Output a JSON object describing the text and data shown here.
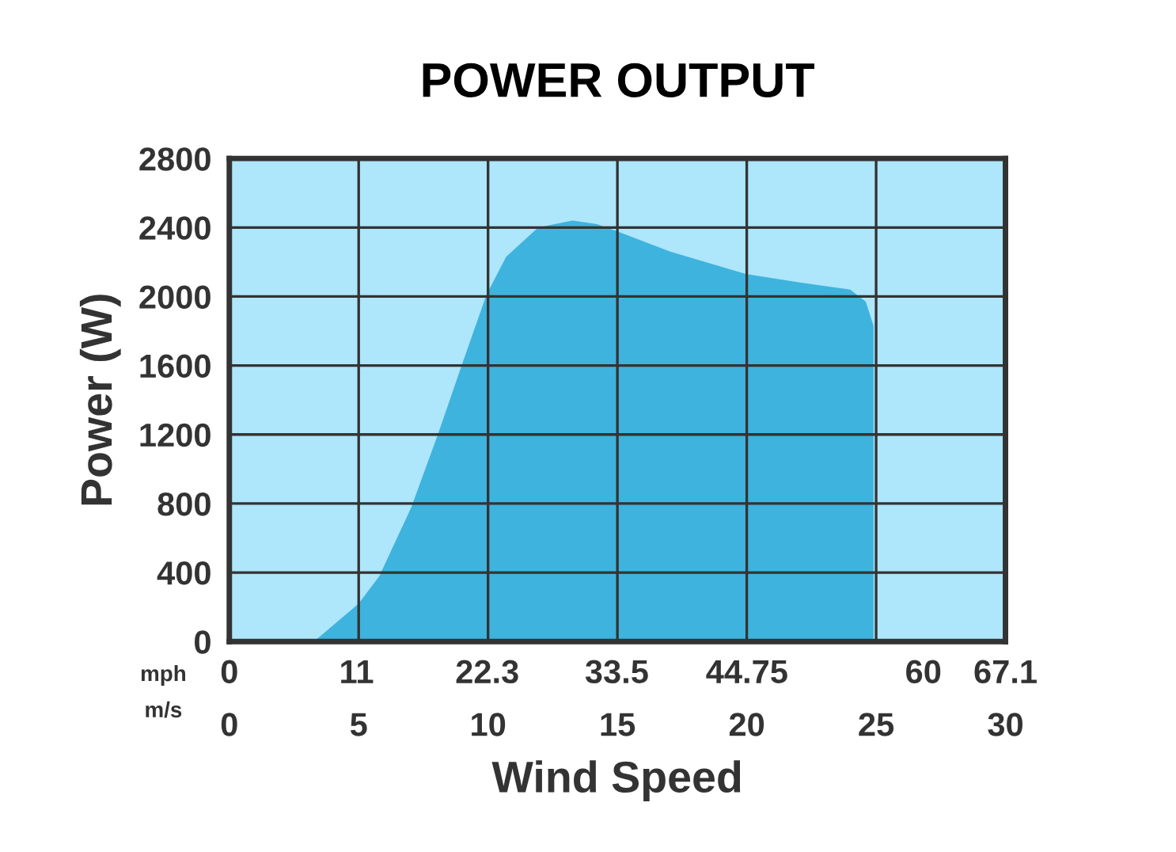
{
  "chart_data": {
    "type": "area",
    "title": "POWER OUTPUT",
    "xlabel": "Wind Speed",
    "ylabel": "Power (W)",
    "annotations": [
      "mph",
      "m/s"
    ],
    "series": [
      {
        "color": "#3eb3de",
        "x": [
          3.27,
          5,
          5.8,
          7.04,
          8.06,
          8.98,
          9.94,
          10.7,
          11.94,
          13.27,
          14.2,
          14.96,
          17.04,
          19.96,
          22.1,
          24.0,
          24.6,
          24.9,
          24.9
        ],
        "values": [
          0,
          220,
          380,
          780,
          1200,
          1600,
          2010,
          2230,
          2400,
          2440,
          2420,
          2380,
          2260,
          2130,
          2080,
          2040,
          1970,
          1830,
          0
        ]
      }
    ],
    "xlim": [
      0,
      30
    ],
    "xticks": [
      0,
      5,
      10,
      15,
      20,
      25,
      30
    ],
    "x2lim": [
      0,
      67.1
    ],
    "x2ticks": [
      0,
      11,
      22.3,
      33.5,
      44.75,
      60,
      67.1
    ],
    "ylim": [
      0,
      2800
    ],
    "yticks": [
      0,
      400,
      800,
      1200,
      1600,
      2000,
      2400,
      2800
    ],
    "grid": true
  }
}
